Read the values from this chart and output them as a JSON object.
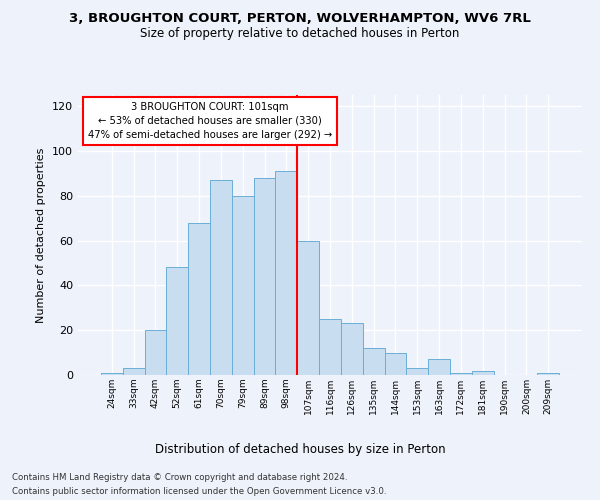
{
  "title1": "3, BROUGHTON COURT, PERTON, WOLVERHAMPTON, WV6 7RL",
  "title2": "Size of property relative to detached houses in Perton",
  "xlabel": "Distribution of detached houses by size in Perton",
  "ylabel": "Number of detached properties",
  "bar_labels": [
    "24sqm",
    "33sqm",
    "42sqm",
    "52sqm",
    "61sqm",
    "70sqm",
    "79sqm",
    "89sqm",
    "98sqm",
    "107sqm",
    "116sqm",
    "126sqm",
    "135sqm",
    "144sqm",
    "153sqm",
    "163sqm",
    "172sqm",
    "181sqm",
    "190sqm",
    "200sqm",
    "209sqm"
  ],
  "bar_values": [
    1,
    3,
    20,
    48,
    68,
    87,
    80,
    88,
    91,
    60,
    25,
    23,
    12,
    10,
    3,
    7,
    1,
    2,
    0,
    0,
    1
  ],
  "bar_color": "#c9ddf0",
  "bar_edge_color": "#6aaed6",
  "vline_color": "red",
  "ylim": [
    0,
    125
  ],
  "yticks": [
    0,
    20,
    40,
    60,
    80,
    100,
    120
  ],
  "annotation_text": "3 BROUGHTON COURT: 101sqm\n← 53% of detached houses are smaller (330)\n47% of semi-detached houses are larger (292) →",
  "annotation_box_color": "#ffffff",
  "annotation_box_edge": "red",
  "footer_line1": "Contains HM Land Registry data © Crown copyright and database right 2024.",
  "footer_line2": "Contains public sector information licensed under the Open Government Licence v3.0.",
  "background_color": "#eef2fa",
  "grid_color": "#ffffff"
}
